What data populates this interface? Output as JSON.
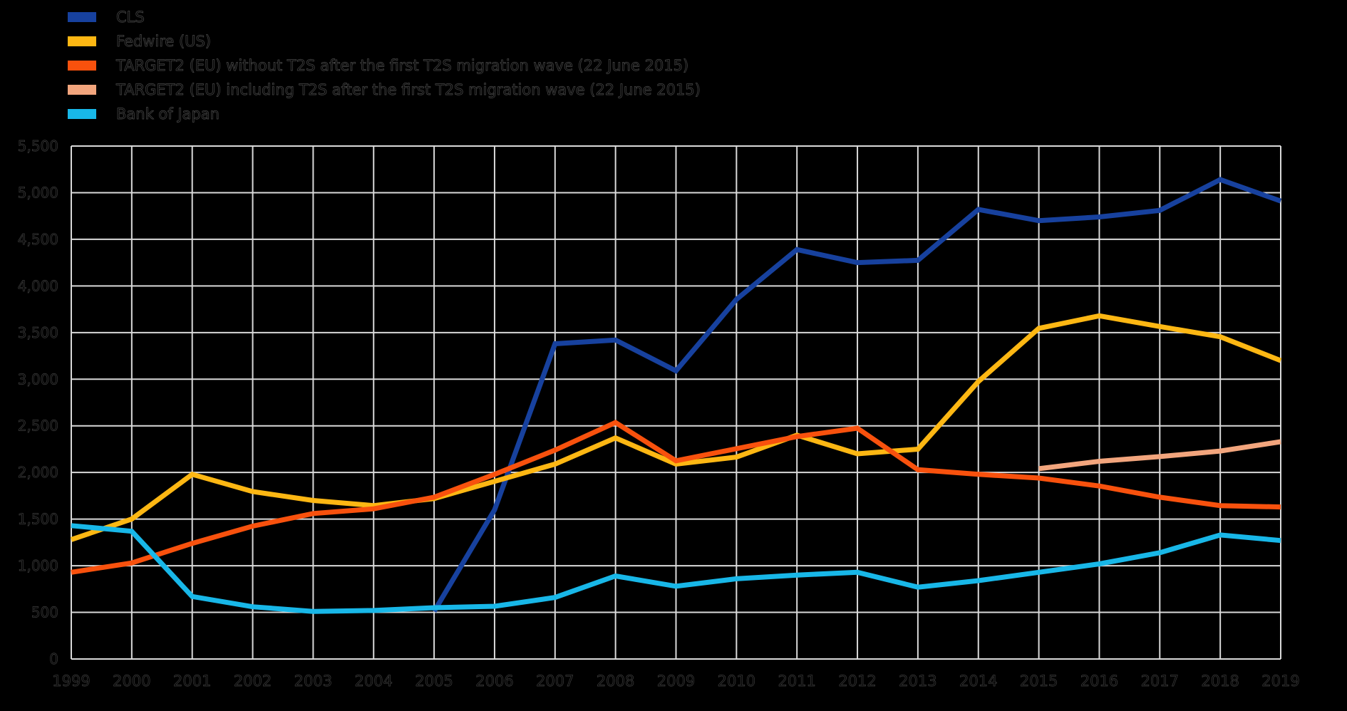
{
  "colors": {
    "background": "#000000",
    "grid": "#d9d9d9",
    "text": "#000000",
    "cls": "#17419e",
    "fedwire": "#fdb713",
    "target2_without_t2s": "#f8510d",
    "target2_including_t2s": "#f2a57d",
    "bank_of_japan": "#18b7e8"
  },
  "legend": {
    "position": "top-left",
    "items": [
      {
        "id": "cls",
        "label": "CLS",
        "color": "#17419e"
      },
      {
        "id": "fedwire-us",
        "label": "Fedwire (US)",
        "color": "#fdb713"
      },
      {
        "id": "target2-eu-without-t2s",
        "label": "TARGET2 (EU) without T2S after the first T2S migration wave (22 June 2015)",
        "color": "#f8510d"
      },
      {
        "id": "target2-eu-including-t2s",
        "label": "TARGET2 (EU) including T2S after the first T2S migration wave (22 June 2015)",
        "color": "#f2a57d"
      },
      {
        "id": "bank-of-japan",
        "label": "Bank of Japan",
        "color": "#18b7e8"
      }
    ]
  },
  "chart_data": {
    "type": "line",
    "title": "",
    "xlabel": "",
    "ylabel": "",
    "x": [
      1999,
      2000,
      2001,
      2002,
      2003,
      2004,
      2005,
      2006,
      2007,
      2008,
      2009,
      2010,
      2011,
      2012,
      2013,
      2014,
      2015,
      2016,
      2017,
      2018,
      2019
    ],
    "ylim": [
      0,
      5500
    ],
    "ytick_step": 500,
    "y_number_format": "thousands-comma",
    "grid": true,
    "series": [
      {
        "id": "cls",
        "name": "CLS",
        "color": "#17419e",
        "values": [
          null,
          null,
          null,
          null,
          null,
          null,
          510,
          1600,
          3380,
          3420,
          3090,
          3855,
          4390,
          4250,
          4275,
          4820,
          4700,
          4740,
          4810,
          5140,
          4910
        ]
      },
      {
        "id": "fedwire-us",
        "name": "Fedwire (US)",
        "color": "#fdb713",
        "values": [
          1280,
          1500,
          1980,
          1795,
          1700,
          1645,
          1720,
          1905,
          2090,
          2370,
          2090,
          2165,
          2400,
          2200,
          2250,
          2975,
          3545,
          3680,
          3565,
          3455,
          3200
        ]
      },
      {
        "id": "target2-eu-without-t2s",
        "name": "TARGET2 (EU) without T2S after the first T2S migration wave (22 June 2015)",
        "color": "#f8510d",
        "values": [
          930,
          1030,
          1240,
          1425,
          1560,
          1610,
          1735,
          1980,
          2240,
          2535,
          2125,
          2255,
          2385,
          2475,
          2030,
          1980,
          1940,
          1855,
          1735,
          1645,
          1630
        ]
      },
      {
        "id": "target2-eu-including-t2s",
        "name": "TARGET2 (EU) including T2S after the first T2S migration wave (22 June 2015)",
        "color": "#f2a57d",
        "values": [
          null,
          null,
          null,
          null,
          null,
          null,
          null,
          null,
          null,
          null,
          null,
          null,
          null,
          null,
          null,
          null,
          2040,
          2120,
          2170,
          2230,
          2330
        ]
      },
      {
        "id": "bank-of-japan",
        "name": "Bank of Japan",
        "color": "#18b7e8",
        "values": [
          1430,
          1370,
          670,
          560,
          510,
          520,
          550,
          565,
          660,
          890,
          780,
          860,
          900,
          930,
          770,
          840,
          930,
          1020,
          1140,
          1330,
          1270
        ]
      }
    ]
  }
}
